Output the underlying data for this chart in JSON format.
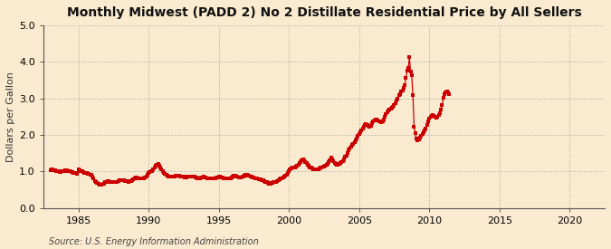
{
  "title": "Monthly Midwest (PADD 2) No 2 Distillate Residential Price by All Sellers",
  "ylabel": "Dollars per Gallon",
  "source": "Source: U.S. Energy Information Administration",
  "xlim": [
    1982.5,
    2022.5
  ],
  "ylim": [
    0.0,
    5.0
  ],
  "yticks": [
    0.0,
    1.0,
    2.0,
    3.0,
    4.0,
    5.0
  ],
  "xticks": [
    1985,
    1990,
    1995,
    2000,
    2005,
    2010,
    2015,
    2020
  ],
  "background_color": "#faebd0",
  "plot_bg_color": "#faebd0",
  "line_color": "#cc0000",
  "marker": "s",
  "markersize": 2.2,
  "linewidth": 0.9,
  "title_fontsize": 10,
  "ylabel_fontsize": 8,
  "tick_fontsize": 8,
  "source_fontsize": 7,
  "data": [
    [
      1983.0,
      1.04
    ],
    [
      1983.083,
      1.05
    ],
    [
      1983.167,
      1.05
    ],
    [
      1983.25,
      1.04
    ],
    [
      1983.333,
      1.03
    ],
    [
      1983.417,
      1.02
    ],
    [
      1983.5,
      1.01
    ],
    [
      1983.583,
      1.0
    ],
    [
      1983.667,
      0.99
    ],
    [
      1983.75,
      0.99
    ],
    [
      1983.833,
      1.0
    ],
    [
      1983.917,
      1.01
    ],
    [
      1984.0,
      1.02
    ],
    [
      1984.083,
      1.03
    ],
    [
      1984.167,
      1.03
    ],
    [
      1984.25,
      1.02
    ],
    [
      1984.333,
      1.01
    ],
    [
      1984.417,
      1.0
    ],
    [
      1984.5,
      0.99
    ],
    [
      1984.583,
      0.98
    ],
    [
      1984.667,
      0.97
    ],
    [
      1984.75,
      0.96
    ],
    [
      1984.833,
      0.95
    ],
    [
      1984.917,
      0.94
    ],
    [
      1985.0,
      1.05
    ],
    [
      1985.083,
      1.04
    ],
    [
      1985.167,
      1.02
    ],
    [
      1985.25,
      1.0
    ],
    [
      1985.333,
      0.99
    ],
    [
      1985.417,
      0.97
    ],
    [
      1985.5,
      0.96
    ],
    [
      1985.583,
      0.95
    ],
    [
      1985.667,
      0.94
    ],
    [
      1985.75,
      0.93
    ],
    [
      1985.833,
      0.92
    ],
    [
      1985.917,
      0.9
    ],
    [
      1986.0,
      0.87
    ],
    [
      1986.083,
      0.8
    ],
    [
      1986.167,
      0.74
    ],
    [
      1986.25,
      0.7
    ],
    [
      1986.333,
      0.68
    ],
    [
      1986.417,
      0.66
    ],
    [
      1986.5,
      0.65
    ],
    [
      1986.583,
      0.65
    ],
    [
      1986.667,
      0.65
    ],
    [
      1986.75,
      0.66
    ],
    [
      1986.833,
      0.67
    ],
    [
      1986.917,
      0.7
    ],
    [
      1987.0,
      0.72
    ],
    [
      1987.083,
      0.73
    ],
    [
      1987.167,
      0.73
    ],
    [
      1987.25,
      0.72
    ],
    [
      1987.333,
      0.71
    ],
    [
      1987.417,
      0.71
    ],
    [
      1987.5,
      0.7
    ],
    [
      1987.583,
      0.7
    ],
    [
      1987.667,
      0.71
    ],
    [
      1987.75,
      0.72
    ],
    [
      1987.833,
      0.73
    ],
    [
      1987.917,
      0.75
    ],
    [
      1988.0,
      0.76
    ],
    [
      1988.083,
      0.77
    ],
    [
      1988.167,
      0.76
    ],
    [
      1988.25,
      0.75
    ],
    [
      1988.333,
      0.74
    ],
    [
      1988.417,
      0.73
    ],
    [
      1988.5,
      0.73
    ],
    [
      1988.583,
      0.72
    ],
    [
      1988.667,
      0.73
    ],
    [
      1988.75,
      0.74
    ],
    [
      1988.833,
      0.76
    ],
    [
      1988.917,
      0.78
    ],
    [
      1989.0,
      0.82
    ],
    [
      1989.083,
      0.84
    ],
    [
      1989.167,
      0.83
    ],
    [
      1989.25,
      0.82
    ],
    [
      1989.333,
      0.81
    ],
    [
      1989.417,
      0.8
    ],
    [
      1989.5,
      0.8
    ],
    [
      1989.583,
      0.81
    ],
    [
      1989.667,
      0.82
    ],
    [
      1989.75,
      0.84
    ],
    [
      1989.833,
      0.87
    ],
    [
      1989.917,
      0.9
    ],
    [
      1990.0,
      0.95
    ],
    [
      1990.083,
      0.98
    ],
    [
      1990.167,
      1.0
    ],
    [
      1990.25,
      1.02
    ],
    [
      1990.333,
      1.05
    ],
    [
      1990.417,
      1.1
    ],
    [
      1990.5,
      1.15
    ],
    [
      1990.583,
      1.18
    ],
    [
      1990.667,
      1.2
    ],
    [
      1990.75,
      1.15
    ],
    [
      1990.833,
      1.1
    ],
    [
      1990.917,
      1.05
    ],
    [
      1991.0,
      1.0
    ],
    [
      1991.083,
      0.97
    ],
    [
      1991.167,
      0.94
    ],
    [
      1991.25,
      0.91
    ],
    [
      1991.333,
      0.89
    ],
    [
      1991.417,
      0.87
    ],
    [
      1991.5,
      0.86
    ],
    [
      1991.583,
      0.85
    ],
    [
      1991.667,
      0.85
    ],
    [
      1991.75,
      0.86
    ],
    [
      1991.833,
      0.87
    ],
    [
      1991.917,
      0.88
    ],
    [
      1992.0,
      0.89
    ],
    [
      1992.083,
      0.89
    ],
    [
      1992.167,
      0.88
    ],
    [
      1992.25,
      0.87
    ],
    [
      1992.333,
      0.86
    ],
    [
      1992.417,
      0.85
    ],
    [
      1992.5,
      0.85
    ],
    [
      1992.583,
      0.84
    ],
    [
      1992.667,
      0.84
    ],
    [
      1992.75,
      0.85
    ],
    [
      1992.833,
      0.86
    ],
    [
      1992.917,
      0.87
    ],
    [
      1993.0,
      0.87
    ],
    [
      1993.083,
      0.87
    ],
    [
      1993.167,
      0.86
    ],
    [
      1993.25,
      0.85
    ],
    [
      1993.333,
      0.84
    ],
    [
      1993.417,
      0.83
    ],
    [
      1993.5,
      0.82
    ],
    [
      1993.583,
      0.82
    ],
    [
      1993.667,
      0.82
    ],
    [
      1993.75,
      0.83
    ],
    [
      1993.833,
      0.84
    ],
    [
      1993.917,
      0.85
    ],
    [
      1994.0,
      0.84
    ],
    [
      1994.083,
      0.83
    ],
    [
      1994.167,
      0.82
    ],
    [
      1994.25,
      0.81
    ],
    [
      1994.333,
      0.81
    ],
    [
      1994.417,
      0.8
    ],
    [
      1994.5,
      0.8
    ],
    [
      1994.583,
      0.8
    ],
    [
      1994.667,
      0.81
    ],
    [
      1994.75,
      0.82
    ],
    [
      1994.833,
      0.83
    ],
    [
      1994.917,
      0.84
    ],
    [
      1995.0,
      0.86
    ],
    [
      1995.083,
      0.85
    ],
    [
      1995.167,
      0.84
    ],
    [
      1995.25,
      0.83
    ],
    [
      1995.333,
      0.82
    ],
    [
      1995.417,
      0.81
    ],
    [
      1995.5,
      0.8
    ],
    [
      1995.583,
      0.8
    ],
    [
      1995.667,
      0.8
    ],
    [
      1995.75,
      0.81
    ],
    [
      1995.833,
      0.82
    ],
    [
      1995.917,
      0.83
    ],
    [
      1996.0,
      0.87
    ],
    [
      1996.083,
      0.88
    ],
    [
      1996.167,
      0.88
    ],
    [
      1996.25,
      0.87
    ],
    [
      1996.333,
      0.85
    ],
    [
      1996.417,
      0.84
    ],
    [
      1996.5,
      0.83
    ],
    [
      1996.583,
      0.84
    ],
    [
      1996.667,
      0.85
    ],
    [
      1996.75,
      0.87
    ],
    [
      1996.833,
      0.88
    ],
    [
      1996.917,
      0.91
    ],
    [
      1997.0,
      0.9
    ],
    [
      1997.083,
      0.89
    ],
    [
      1997.167,
      0.88
    ],
    [
      1997.25,
      0.87
    ],
    [
      1997.333,
      0.85
    ],
    [
      1997.417,
      0.84
    ],
    [
      1997.5,
      0.83
    ],
    [
      1997.583,
      0.82
    ],
    [
      1997.667,
      0.81
    ],
    [
      1997.75,
      0.8
    ],
    [
      1997.833,
      0.79
    ],
    [
      1997.917,
      0.79
    ],
    [
      1998.0,
      0.78
    ],
    [
      1998.083,
      0.77
    ],
    [
      1998.167,
      0.76
    ],
    [
      1998.25,
      0.74
    ],
    [
      1998.333,
      0.72
    ],
    [
      1998.417,
      0.7
    ],
    [
      1998.5,
      0.68
    ],
    [
      1998.583,
      0.67
    ],
    [
      1998.667,
      0.67
    ],
    [
      1998.75,
      0.68
    ],
    [
      1998.833,
      0.69
    ],
    [
      1998.917,
      0.7
    ],
    [
      1999.0,
      0.71
    ],
    [
      1999.083,
      0.72
    ],
    [
      1999.167,
      0.73
    ],
    [
      1999.25,
      0.75
    ],
    [
      1999.333,
      0.78
    ],
    [
      1999.417,
      0.8
    ],
    [
      1999.5,
      0.82
    ],
    [
      1999.583,
      0.84
    ],
    [
      1999.667,
      0.86
    ],
    [
      1999.75,
      0.88
    ],
    [
      1999.833,
      0.91
    ],
    [
      1999.917,
      0.95
    ],
    [
      2000.0,
      1.0
    ],
    [
      2000.083,
      1.05
    ],
    [
      2000.167,
      1.08
    ],
    [
      2000.25,
      1.1
    ],
    [
      2000.333,
      1.11
    ],
    [
      2000.417,
      1.12
    ],
    [
      2000.5,
      1.13
    ],
    [
      2000.583,
      1.15
    ],
    [
      2000.667,
      1.18
    ],
    [
      2000.75,
      1.22
    ],
    [
      2000.833,
      1.26
    ],
    [
      2000.917,
      1.3
    ],
    [
      2001.0,
      1.32
    ],
    [
      2001.083,
      1.3
    ],
    [
      2001.167,
      1.26
    ],
    [
      2001.25,
      1.22
    ],
    [
      2001.333,
      1.18
    ],
    [
      2001.417,
      1.15
    ],
    [
      2001.5,
      1.12
    ],
    [
      2001.583,
      1.1
    ],
    [
      2001.667,
      1.08
    ],
    [
      2001.75,
      1.07
    ],
    [
      2001.833,
      1.06
    ],
    [
      2001.917,
      1.05
    ],
    [
      2002.0,
      1.05
    ],
    [
      2002.083,
      1.06
    ],
    [
      2002.167,
      1.08
    ],
    [
      2002.25,
      1.1
    ],
    [
      2002.333,
      1.12
    ],
    [
      2002.417,
      1.13
    ],
    [
      2002.5,
      1.14
    ],
    [
      2002.583,
      1.15
    ],
    [
      2002.667,
      1.17
    ],
    [
      2002.75,
      1.2
    ],
    [
      2002.833,
      1.25
    ],
    [
      2002.917,
      1.3
    ],
    [
      2003.0,
      1.37
    ],
    [
      2003.083,
      1.33
    ],
    [
      2003.167,
      1.28
    ],
    [
      2003.25,
      1.24
    ],
    [
      2003.333,
      1.21
    ],
    [
      2003.417,
      1.19
    ],
    [
      2003.5,
      1.18
    ],
    [
      2003.583,
      1.2
    ],
    [
      2003.667,
      1.22
    ],
    [
      2003.75,
      1.25
    ],
    [
      2003.833,
      1.28
    ],
    [
      2003.917,
      1.33
    ],
    [
      2004.0,
      1.4
    ],
    [
      2004.083,
      1.44
    ],
    [
      2004.167,
      1.5
    ],
    [
      2004.25,
      1.57
    ],
    [
      2004.333,
      1.63
    ],
    [
      2004.417,
      1.68
    ],
    [
      2004.5,
      1.72
    ],
    [
      2004.583,
      1.76
    ],
    [
      2004.667,
      1.8
    ],
    [
      2004.75,
      1.84
    ],
    [
      2004.833,
      1.9
    ],
    [
      2004.917,
      1.97
    ],
    [
      2005.0,
      2.02
    ],
    [
      2005.083,
      2.07
    ],
    [
      2005.167,
      2.12
    ],
    [
      2005.25,
      2.17
    ],
    [
      2005.333,
      2.22
    ],
    [
      2005.417,
      2.26
    ],
    [
      2005.5,
      2.3
    ],
    [
      2005.583,
      2.27
    ],
    [
      2005.667,
      2.24
    ],
    [
      2005.75,
      2.21
    ],
    [
      2005.833,
      2.25
    ],
    [
      2005.917,
      2.31
    ],
    [
      2006.0,
      2.37
    ],
    [
      2006.083,
      2.4
    ],
    [
      2006.167,
      2.42
    ],
    [
      2006.25,
      2.43
    ],
    [
      2006.333,
      2.4
    ],
    [
      2006.417,
      2.38
    ],
    [
      2006.5,
      2.36
    ],
    [
      2006.583,
      2.35
    ],
    [
      2006.667,
      2.38
    ],
    [
      2006.75,
      2.43
    ],
    [
      2006.833,
      2.5
    ],
    [
      2006.917,
      2.57
    ],
    [
      2007.0,
      2.62
    ],
    [
      2007.083,
      2.67
    ],
    [
      2007.167,
      2.7
    ],
    [
      2007.25,
      2.72
    ],
    [
      2007.333,
      2.74
    ],
    [
      2007.417,
      2.77
    ],
    [
      2007.5,
      2.82
    ],
    [
      2007.583,
      2.87
    ],
    [
      2007.667,
      2.93
    ],
    [
      2007.75,
      3.0
    ],
    [
      2007.833,
      3.08
    ],
    [
      2007.917,
      3.12
    ],
    [
      2008.0,
      3.18
    ],
    [
      2008.083,
      3.22
    ],
    [
      2008.167,
      3.28
    ],
    [
      2008.25,
      3.35
    ],
    [
      2008.333,
      3.55
    ],
    [
      2008.417,
      3.75
    ],
    [
      2008.5,
      3.82
    ],
    [
      2008.583,
      4.12
    ],
    [
      2008.667,
      3.72
    ],
    [
      2008.75,
      3.62
    ],
    [
      2008.833,
      3.08
    ],
    [
      2008.917,
      2.22
    ],
    [
      2009.0,
      2.05
    ],
    [
      2009.083,
      1.9
    ],
    [
      2009.167,
      1.85
    ],
    [
      2009.25,
      1.88
    ],
    [
      2009.333,
      1.92
    ],
    [
      2009.417,
      1.97
    ],
    [
      2009.5,
      2.02
    ],
    [
      2009.583,
      2.07
    ],
    [
      2009.667,
      2.12
    ],
    [
      2009.75,
      2.18
    ],
    [
      2009.833,
      2.28
    ],
    [
      2009.917,
      2.38
    ],
    [
      2010.0,
      2.45
    ],
    [
      2010.083,
      2.5
    ],
    [
      2010.167,
      2.52
    ],
    [
      2010.25,
      2.54
    ],
    [
      2010.333,
      2.52
    ],
    [
      2010.417,
      2.5
    ],
    [
      2010.5,
      2.48
    ],
    [
      2010.583,
      2.5
    ],
    [
      2010.667,
      2.55
    ],
    [
      2010.75,
      2.6
    ],
    [
      2010.833,
      2.7
    ],
    [
      2010.917,
      2.82
    ],
    [
      2011.0,
      3.02
    ],
    [
      2011.083,
      3.12
    ],
    [
      2011.167,
      3.16
    ],
    [
      2011.25,
      3.18
    ],
    [
      2011.333,
      3.15
    ],
    [
      2011.417,
      3.1
    ]
  ]
}
